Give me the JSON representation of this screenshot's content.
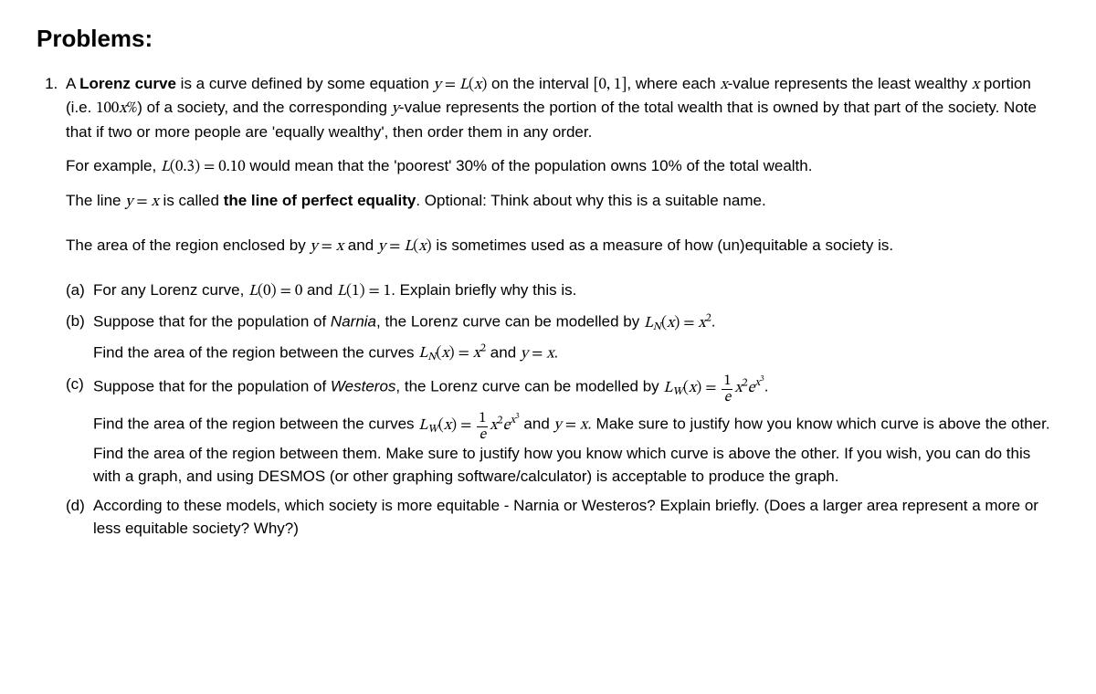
{
  "heading": "Problems:",
  "problem_number": "1.",
  "intro": {
    "p1_pre": "A ",
    "p1_bold": "Lorenz curve",
    "p1_post": " is a curve defined by some equation ",
    "p1_eq1_html": "<span class='mi'>y</span> = <span class='mi'>L</span>(<span class='mi'>x</span>)",
    "p1_mid1": " on the interval ",
    "p1_interval": "[0, 1]",
    "p1_mid2": ", where each ",
    "p1_xvar": "x",
    "p1_mid3": "-value represents the least wealthy ",
    "p1_mid4": " portion (i.e. ",
    "p1_100x": "100<span class='mi'>x</span>%",
    "p1_mid5": ") of a society, and the corresponding ",
    "p1_yvar": "y",
    "p1_mid6": "-value represents the portion of the total wealth that is owned by that part of the society. Note that if two or more people are 'equally wealthy', then order them in any order.",
    "p2_pre": "For example, ",
    "p2_eq_html": "<span class='mi'>L</span>(0.3) = 0.10",
    "p2_post": " would mean that the 'poorest' 30% of the population owns 10% of the total wealth.",
    "p3_pre": "The line ",
    "p3_eq_html": "<span class='mi'>y</span> = <span class='mi'>x</span>",
    "p3_mid": " is called ",
    "p3_bold": "the line of perfect equality",
    "p3_post": ". Optional: Think about why this is a suitable name.",
    "p4_pre": "The area of the region enclosed by ",
    "p4_eq1_html": "<span class='mi'>y</span> = <span class='mi'>x</span>",
    "p4_mid": " and ",
    "p4_eq2_html": "<span class='mi'>y</span> = <span class='mi'>L</span>(<span class='mi'>x</span>)",
    "p4_post": " is sometimes used as a measure of how (un)equitable a society is."
  },
  "parts": {
    "a": {
      "marker": "(a)",
      "pre": "For any Lorenz curve, ",
      "eq1_html": "<span class='mi'>L</span>(0) = 0",
      "mid": " and ",
      "eq2_html": "<span class='mi'>L</span>(1) = 1",
      "post": ". Explain briefly why this is."
    },
    "b": {
      "marker": "(b)",
      "l1_pre": "Suppose that for the population of ",
      "l1_place": "Narnia",
      "l1_mid": ", the Lorenz curve can be modelled by ",
      "l1_eq_html": "<span class='mi'>L</span><sub><span class='mi'>N</span></sub>(<span class='mi'>x</span>) = <span class='mi'>x</span><sup>2</sup>",
      "l1_post": ".",
      "l2_pre": "Find the area of the region between the curves ",
      "l2_eq1_html": "<span class='mi'>L</span><sub><span class='mi'>N</span></sub>(<span class='mi'>x</span>) = <span class='mi'>x</span><sup>2</sup>",
      "l2_mid": " and ",
      "l2_eq2_html": "<span class='mi'>y</span> = <span class='mi'>x</span>",
      "l2_post": "."
    },
    "c": {
      "marker": "(c)",
      "l1_pre": "Suppose that for the population of ",
      "l1_place": "Westeros",
      "l1_mid": ", the Lorenz curve can be modelled by ",
      "l1_eq_html": "<span class='mi'>L</span><sub><span class='mi'>W</span></sub>(<span class='mi'>x</span>) = <span class='frac'><span class='num'>1</span><span class='den'><span class='mi'>e</span></span></span><span class='mi'>x</span><sup>2</sup><span class='mi'>e</span><sup><span class='mi'>x</span><sup>3</sup></sup>",
      "l1_post": ".",
      "l2_pre": "Find the area of the region between the curves ",
      "l2_eq1_html": "<span class='mi'>L</span><sub><span class='mi'>W</span></sub>(<span class='mi'>x</span>) = <span class='frac'><span class='num'>1</span><span class='den'><span class='mi'>e</span></span></span><span class='mi'>x</span><sup>2</sup><span class='mi'>e</span><sup><span class='mi'>x</span><sup>3</sup></sup>",
      "l2_mid": " and ",
      "l2_eq2_html": "<span class='mi'>y</span> = <span class='mi'>x</span>",
      "l2_post": ". Make sure to justify how you know which curve is above the other. Find the area of the region between them. Make sure to justify how you know which curve is above the other. If you wish, you can do this with a graph, and using DESMOS (or other graphing software/calculator) is acceptable to produce the graph."
    },
    "d": {
      "marker": "(d)",
      "text": "According to these models, which society is more equitable - Narnia or Westeros? Explain briefly. (Does a larger area represent a more or less equitable society? Why?)"
    }
  }
}
